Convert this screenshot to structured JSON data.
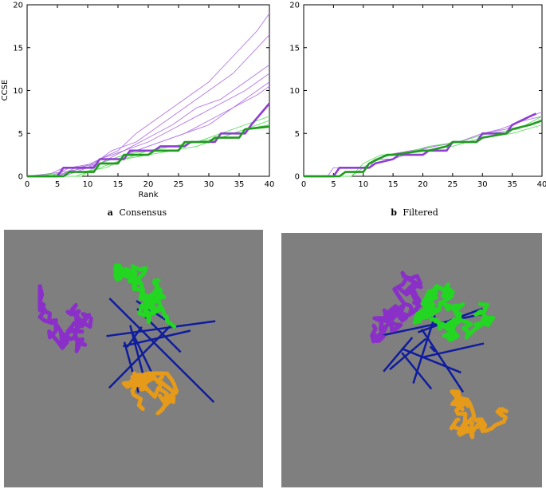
{
  "colors": {
    "purple": "#8e3fd0",
    "purple_light": "#b277e6",
    "green": "#1f9a1f",
    "green_light": "#5ce05c",
    "panel_bg": "#7f7f7f",
    "mol_purple": "#8b2fc9",
    "mol_green": "#22d622",
    "mol_orange": "#e69a1a",
    "mol_blue": "#0f1c9e"
  },
  "chart_data": [
    {
      "type": "line",
      "panel": "a",
      "caption_letter": "a",
      "caption_text": "Consensus",
      "xlabel": "Rank",
      "ylabel": "CCSE",
      "xlim": [
        0,
        40
      ],
      "ylim": [
        0,
        20
      ],
      "xticks": [
        0,
        5,
        10,
        15,
        20,
        25,
        30,
        35,
        40
      ],
      "yticks": [
        0,
        5,
        10,
        15,
        20
      ],
      "grid": false,
      "series": [
        {
          "group": "purple-thin",
          "x": [
            0,
            3,
            6,
            10,
            12,
            15,
            18,
            22,
            26,
            30,
            34,
            38,
            40
          ],
          "y": [
            0,
            0,
            1,
            1,
            2,
            3,
            5,
            7,
            9,
            11,
            14,
            17,
            19
          ]
        },
        {
          "group": "purple-thin",
          "x": [
            0,
            4,
            7,
            11,
            14,
            18,
            22,
            26,
            30,
            34,
            38,
            40
          ],
          "y": [
            0,
            0,
            1,
            1.5,
            3,
            4,
            6,
            8,
            10,
            12,
            15,
            16.5
          ]
        },
        {
          "group": "purple-thin",
          "x": [
            0,
            5,
            8,
            12,
            16,
            20,
            24,
            28,
            32,
            36,
            40
          ],
          "y": [
            0,
            0,
            1,
            1.5,
            3,
            4.5,
            6,
            8,
            9,
            11,
            13
          ]
        },
        {
          "group": "purple-thin",
          "x": [
            0,
            5,
            9,
            12,
            16,
            20,
            24,
            28,
            32,
            36,
            40
          ],
          "y": [
            0,
            0,
            1,
            2,
            3,
            4,
            5.5,
            7,
            8.5,
            10,
            12
          ]
        },
        {
          "group": "purple-thin",
          "x": [
            0,
            6,
            10,
            14,
            18,
            22,
            26,
            30,
            34,
            38,
            40
          ],
          "y": [
            0,
            0,
            1,
            2,
            3,
            4,
            5,
            6.5,
            8,
            10,
            11
          ]
        },
        {
          "group": "purple-thin",
          "x": [
            0,
            6,
            10,
            14,
            18,
            22,
            26,
            30,
            34,
            38,
            40
          ],
          "y": [
            0,
            0.5,
            1,
            2,
            3,
            4,
            5,
            6,
            8,
            9.5,
            10.5
          ]
        },
        {
          "group": "green-thin",
          "x": [
            0,
            8,
            12,
            16,
            20,
            24,
            28,
            32,
            36,
            40
          ],
          "y": [
            0,
            0,
            1,
            2,
            3,
            3.5,
            4,
            5,
            6,
            7
          ]
        },
        {
          "group": "green-thin",
          "x": [
            0,
            9,
            13,
            16,
            20,
            24,
            28,
            32,
            36,
            40
          ],
          "y": [
            0,
            0.5,
            1,
            2,
            2.5,
            3,
            3.5,
            4.5,
            5.5,
            6.5
          ]
        },
        {
          "group": "green-thin",
          "x": [
            0,
            9,
            12,
            16,
            20,
            24,
            28,
            32,
            36,
            40
          ],
          "y": [
            0,
            0,
            1.5,
            2.5,
            3,
            3.5,
            4,
            4.5,
            5.5,
            6
          ]
        },
        {
          "group": "purple-thick",
          "x": [
            0,
            5,
            6,
            11,
            12,
            16,
            17,
            21,
            22,
            26,
            27,
            31,
            32,
            36,
            37,
            40
          ],
          "y": [
            0,
            0,
            1,
            1,
            2,
            2,
            3,
            3,
            3.5,
            3.5,
            4,
            4,
            5,
            5,
            6,
            8.5
          ]
        },
        {
          "group": "green-thick",
          "x": [
            0,
            6,
            7,
            11,
            12,
            15,
            16,
            20,
            21,
            25,
            26,
            30,
            31,
            35,
            36,
            40
          ],
          "y": [
            0,
            0,
            0.5,
            0.5,
            1.5,
            1.5,
            2.5,
            2.5,
            3,
            3,
            4,
            4,
            4.5,
            4.5,
            5.5,
            5.8
          ]
        }
      ]
    },
    {
      "type": "line",
      "panel": "b",
      "caption_letter": "b",
      "caption_text": "Filtered",
      "xlabel": "",
      "ylabel": "",
      "xlim": [
        0,
        40
      ],
      "ylim": [
        0,
        20
      ],
      "xticks": [
        0,
        5,
        10,
        15,
        20,
        25,
        30,
        35,
        40
      ],
      "yticks": [
        0,
        5,
        10,
        15,
        20
      ],
      "grid": false,
      "series": [
        {
          "group": "purple-thin",
          "x": [
            0,
            4,
            5,
            10,
            12,
            14,
            18,
            22,
            26,
            30,
            34,
            38,
            40
          ],
          "y": [
            0,
            0,
            1,
            1,
            2,
            2.5,
            3,
            3.5,
            4,
            5,
            5.5,
            7,
            7.5
          ]
        },
        {
          "group": "purple-thin",
          "x": [
            0,
            5,
            6,
            11,
            12,
            15,
            19,
            22,
            26,
            30,
            33,
            37,
            40
          ],
          "y": [
            0,
            0,
            1,
            1,
            2,
            2,
            3,
            3.5,
            4,
            5,
            5.5,
            6.5,
            7
          ]
        },
        {
          "group": "green-thin",
          "x": [
            0,
            8,
            10,
            12,
            15,
            20,
            25,
            30,
            35,
            40
          ],
          "y": [
            0,
            0,
            1,
            2,
            2.5,
            3,
            3.5,
            4.5,
            5,
            6
          ]
        },
        {
          "group": "green-thin",
          "x": [
            0,
            8,
            10,
            13,
            16,
            21,
            26,
            31,
            36,
            40
          ],
          "y": [
            0,
            0,
            1.5,
            2.5,
            2.5,
            3.5,
            4,
            5,
            5.5,
            7
          ]
        },
        {
          "group": "purple-thick",
          "x": [
            0,
            5,
            6,
            11,
            12,
            15,
            16,
            20,
            21,
            24,
            25,
            29,
            30,
            34,
            35,
            38,
            39
          ],
          "y": [
            0,
            0,
            1,
            1,
            1.5,
            2,
            2.5,
            2.5,
            3,
            3,
            4,
            4,
            5,
            5,
            6,
            7,
            7.3
          ]
        },
        {
          "group": "green-thick",
          "x": [
            0,
            6,
            7,
            10,
            11,
            14,
            15,
            20,
            21,
            24,
            25,
            29,
            30,
            34,
            35,
            38,
            40
          ],
          "y": [
            0,
            0,
            0.5,
            0.5,
            1.5,
            2.5,
            2.5,
            3,
            3,
            3.5,
            4,
            4,
            4.5,
            5,
            5.5,
            6,
            6.5
          ]
        }
      ]
    }
  ]
}
